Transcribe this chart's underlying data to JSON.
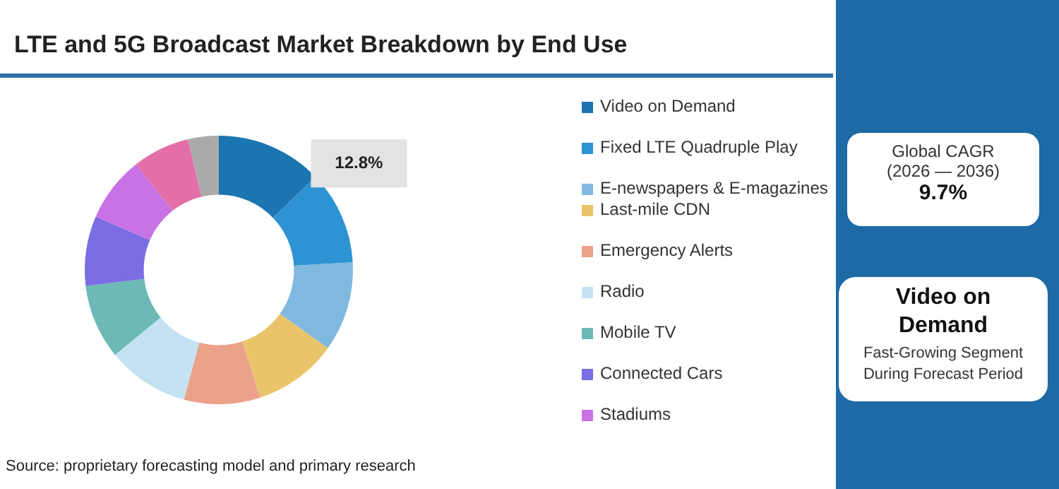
{
  "chart_data": {
    "type": "donut",
    "title": "LTE and 5G Broadcast Market Breakdown by End Use",
    "categories": [
      "Video on Demand",
      "Fixed LTE Quadruple Play",
      "E-newspapers & E-magazines",
      "Last-mile CDN",
      "Emergency Alerts",
      "Radio",
      "Mobile TV",
      "Connected Cars",
      "Stadiums",
      null,
      null
    ],
    "values": [
      12.8,
      11.3,
      10.8,
      10.1,
      9.2,
      9.9,
      9.0,
      8.4,
      7.9,
      6.9,
      3.7
    ],
    "colors": [
      "#1b75b0",
      "#2e93d3",
      "#7fb9e0",
      "#e9c46a",
      "#eba18a",
      "#c5e2f2",
      "#6cb9b5",
      "#7b6de3",
      "#c872e6",
      "#e46fa8",
      "#aaaaaa"
    ],
    "value_labels": [
      "12.8%",
      null,
      null,
      null,
      null,
      null,
      null,
      null,
      null,
      null,
      null
    ],
    "legend": "right",
    "annotations": [
      "Global CAGR",
      "(2026 — 2036)",
      "9.7%",
      "Video on Demand",
      "Fast-Growing Segment During Forecast Period",
      "Source: proprietary forecasting model and primary research"
    ]
  }
}
